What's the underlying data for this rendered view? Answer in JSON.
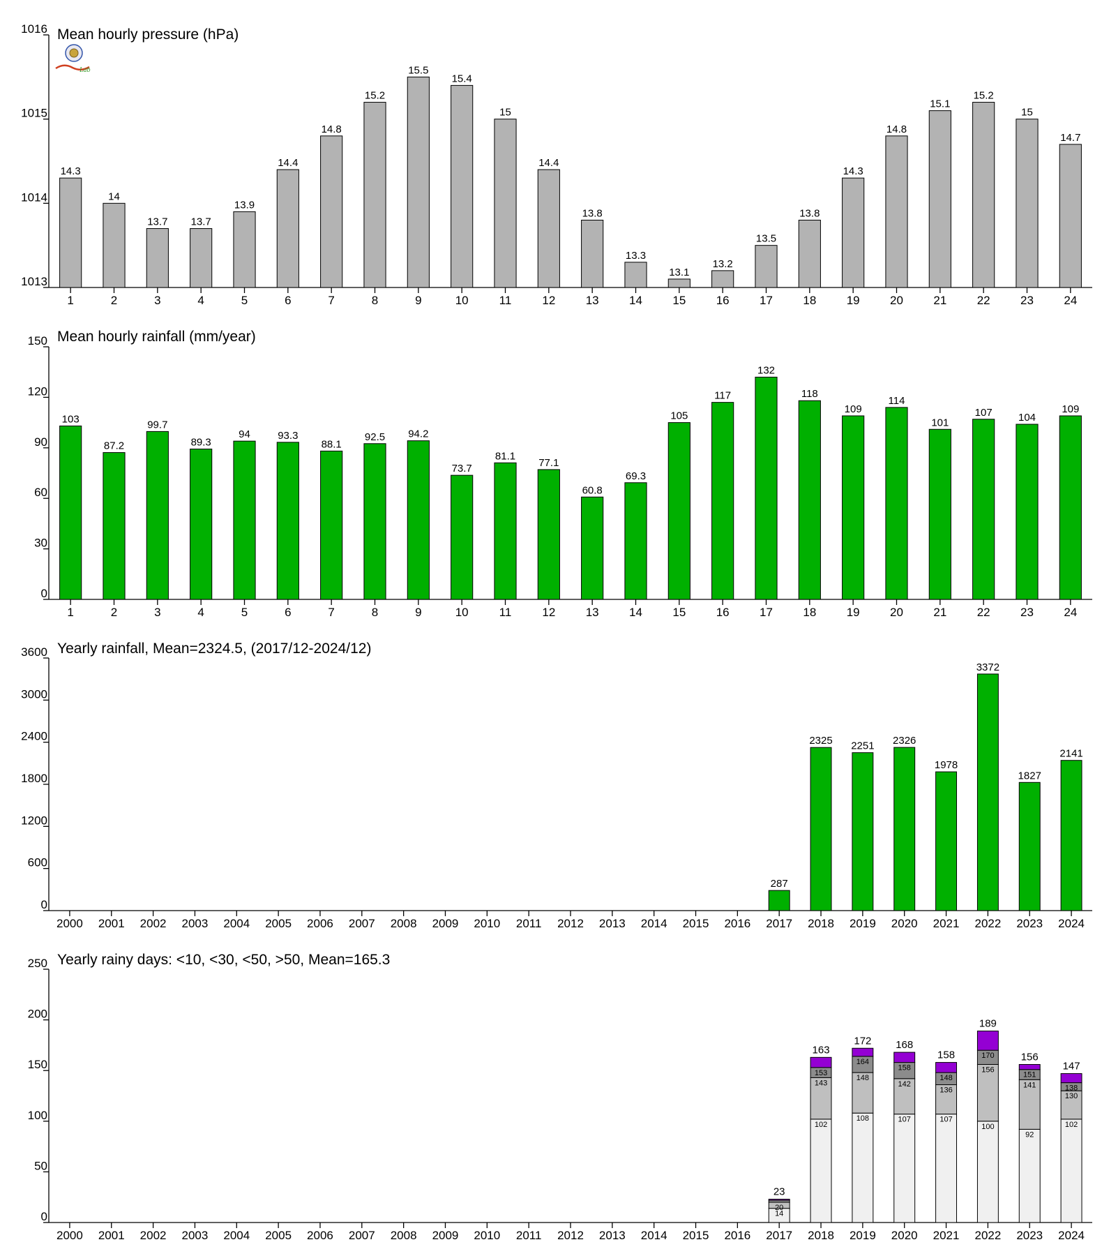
{
  "colors": {
    "pressure_bar": "#b3b3b3",
    "rain_bar": "#00b000",
    "days_lt10": "#f0f0f0",
    "days_lt30": "#bfbfbf",
    "days_lt50": "#8c8c8c",
    "days_gt50": "#9400d3",
    "bar_stroke": "#000000"
  },
  "logo": {
    "text": "Lab"
  },
  "chart_data": [
    {
      "id": "pressure",
      "type": "bar",
      "title": "Mean hourly pressure (hPa)",
      "categories": [
        "1",
        "2",
        "3",
        "4",
        "5",
        "6",
        "7",
        "8",
        "9",
        "10",
        "11",
        "12",
        "13",
        "14",
        "15",
        "16",
        "17",
        "18",
        "19",
        "20",
        "21",
        "22",
        "23",
        "24"
      ],
      "values": [
        1014.3,
        1014.0,
        1013.7,
        1013.7,
        1013.9,
        1014.4,
        1014.8,
        1015.2,
        1015.5,
        1015.4,
        1015.0,
        1014.4,
        1013.8,
        1013.3,
        1013.1,
        1013.2,
        1013.5,
        1013.8,
        1014.3,
        1014.8,
        1015.1,
        1015.2,
        1015.0,
        1014.7
      ],
      "labels": [
        "14.3",
        "14",
        "13.7",
        "13.7",
        "13.9",
        "14.4",
        "14.8",
        "15.2",
        "15.5",
        "15.4",
        "15",
        "14.4",
        "13.8",
        "13.3",
        "13.1",
        "13.2",
        "13.5",
        "13.8",
        "14.3",
        "14.8",
        "15.1",
        "15.2",
        "15",
        "14.7"
      ],
      "ylim": [
        1013,
        1016
      ],
      "yticks": [
        "1013",
        "1014",
        "1015",
        "1016"
      ]
    },
    {
      "id": "hourly_rain",
      "type": "bar",
      "title": "Mean hourly rainfall (mm/year)",
      "categories": [
        "1",
        "2",
        "3",
        "4",
        "5",
        "6",
        "7",
        "8",
        "9",
        "10",
        "11",
        "12",
        "13",
        "14",
        "15",
        "16",
        "17",
        "18",
        "19",
        "20",
        "21",
        "22",
        "23",
        "24"
      ],
      "values": [
        103,
        87.2,
        99.7,
        89.3,
        94,
        93.3,
        88.1,
        92.5,
        94.2,
        73.7,
        81.1,
        77.1,
        60.8,
        69.3,
        105,
        117,
        132,
        118,
        109,
        114,
        101,
        107,
        104,
        109
      ],
      "labels": [
        "103",
        "87.2",
        "99.7",
        "89.3",
        "94",
        "93.3",
        "88.1",
        "92.5",
        "94.2",
        "73.7",
        "81.1",
        "77.1",
        "60.8",
        "69.3",
        "105",
        "117",
        "132",
        "118",
        "109",
        "114",
        "101",
        "107",
        "104",
        "109"
      ],
      "ylim": [
        0,
        150
      ],
      "yticks": [
        "0",
        "30",
        "60",
        "90",
        "120",
        "150"
      ]
    },
    {
      "id": "yearly_rain",
      "type": "bar",
      "title": "Yearly rainfall, Mean=2324.5, (2017/12-2024/12)",
      "categories": [
        "2000",
        "2001",
        "2002",
        "2003",
        "2004",
        "2005",
        "2006",
        "2007",
        "2008",
        "2009",
        "2010",
        "2011",
        "2012",
        "2013",
        "2014",
        "2015",
        "2016",
        "2017",
        "2018",
        "2019",
        "2020",
        "2021",
        "2022",
        "2023",
        "2024"
      ],
      "values": [
        null,
        null,
        null,
        null,
        null,
        null,
        null,
        null,
        null,
        null,
        null,
        null,
        null,
        null,
        null,
        null,
        null,
        287,
        2325,
        2251,
        2326,
        1978,
        3372,
        1827,
        2141
      ],
      "labels": [
        "",
        "",
        "",
        "",
        "",
        "",
        "",
        "",
        "",
        "",
        "",
        "",
        "",
        "",
        "",
        "",
        "",
        "287",
        "2325",
        "2251",
        "2326",
        "1978",
        "3372",
        "1827",
        "2141"
      ],
      "ylim": [
        0,
        3600
      ],
      "yticks": [
        "0",
        "600",
        "1200",
        "1800",
        "2400",
        "3000",
        "3600"
      ]
    },
    {
      "id": "rainy_days",
      "type": "bar",
      "stacked": true,
      "title": "Yearly rainy days: <10, <30, <50, >50, Mean=165.3",
      "categories": [
        "2000",
        "2001",
        "2002",
        "2003",
        "2004",
        "2005",
        "2006",
        "2007",
        "2008",
        "2009",
        "2010",
        "2011",
        "2012",
        "2013",
        "2014",
        "2015",
        "2016",
        "2017",
        "2018",
        "2019",
        "2020",
        "2021",
        "2022",
        "2023",
        "2024"
      ],
      "cumulative": [
        null,
        null,
        null,
        null,
        null,
        null,
        null,
        null,
        null,
        null,
        null,
        null,
        null,
        null,
        null,
        null,
        null,
        [
          14,
          20,
          22,
          23
        ],
        [
          102,
          143,
          153,
          163
        ],
        [
          108,
          148,
          164,
          172
        ],
        [
          107,
          142,
          158,
          168
        ],
        [
          107,
          136,
          148,
          158
        ],
        [
          100,
          156,
          170,
          189
        ],
        [
          92,
          141,
          151,
          156
        ],
        [
          102,
          130,
          138,
          147
        ]
      ],
      "segment_labels": [
        null,
        null,
        null,
        null,
        null,
        null,
        null,
        null,
        null,
        null,
        null,
        null,
        null,
        null,
        null,
        null,
        null,
        [
          "14",
          "20",
          "",
          ""
        ],
        [
          "102",
          "143",
          "153",
          ""
        ],
        [
          "108",
          "148",
          "164",
          ""
        ],
        [
          "107",
          "142",
          "158",
          ""
        ],
        [
          "107",
          "136",
          "148",
          ""
        ],
        [
          "100",
          "156",
          "170",
          ""
        ],
        [
          "92",
          "141",
          "151",
          ""
        ],
        [
          "102",
          "130",
          "138",
          ""
        ]
      ],
      "labels": [
        "",
        "",
        "",
        "",
        "",
        "",
        "",
        "",
        "",
        "",
        "",
        "",
        "",
        "",
        "",
        "",
        "",
        "23",
        "163",
        "172",
        "168",
        "158",
        "189",
        "156",
        "147"
      ],
      "ylim": [
        0,
        250
      ],
      "yticks": [
        "0",
        "50",
        "100",
        "150",
        "200",
        "250"
      ]
    }
  ]
}
